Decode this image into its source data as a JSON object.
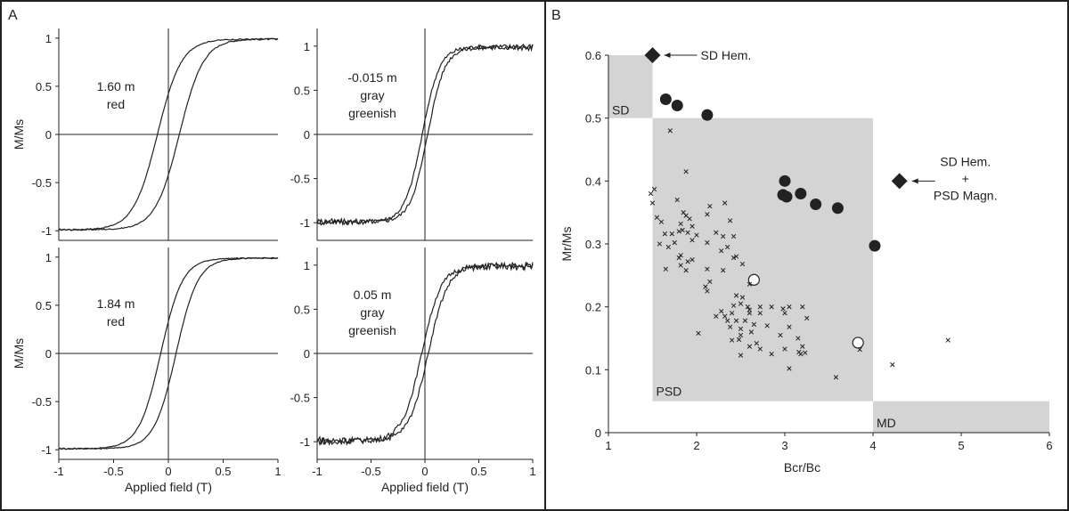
{
  "panels": {
    "a": "A",
    "b": "B"
  },
  "chart_data": [
    {
      "type": "line",
      "panel": "A",
      "subplot": "top-left",
      "annotation": [
        "1.60 m",
        "red"
      ],
      "ylabel": "M/Ms",
      "xlabel": "",
      "xlim": [
        -1,
        1
      ],
      "ylim": [
        -1.1,
        1.1
      ],
      "xticks": [
        "-1",
        "-0.5",
        "0",
        "0.5",
        "1"
      ],
      "yticks": [
        "-1",
        "-0.5",
        "0",
        "0.5",
        "1"
      ],
      "loop": {
        "coercivity": 0.1,
        "width": 0.22,
        "noise": 0.005
      }
    },
    {
      "type": "line",
      "panel": "A",
      "subplot": "top-right",
      "annotation": [
        "-0.015 m",
        "gray",
        "greenish"
      ],
      "ylabel": "",
      "xlabel": "",
      "xlim": [
        -1,
        1
      ],
      "ylim": [
        -1.2,
        1.2
      ],
      "xticks": [
        "-1",
        "-0.5",
        "0",
        "0.5",
        "1"
      ],
      "yticks": [
        "-1",
        "-0.5",
        "0",
        "0.5",
        "1"
      ],
      "loop": {
        "coercivity": 0.025,
        "width": 0.16,
        "noise": 0.025
      }
    },
    {
      "type": "line",
      "panel": "A",
      "subplot": "bottom-left",
      "annotation": [
        "1.84 m",
        "red"
      ],
      "ylabel": "M/Ms",
      "xlabel": "Applied field (T)",
      "xlim": [
        -1,
        1
      ],
      "ylim": [
        -1.1,
        1.1
      ],
      "xticks": [
        "-1",
        "-0.5",
        "0",
        "0.5",
        "1"
      ],
      "yticks": [
        "-1",
        "-0.5",
        "0",
        "0.5",
        "1"
      ],
      "loop": {
        "coercivity": 0.07,
        "width": 0.2,
        "noise": 0.004
      }
    },
    {
      "type": "line",
      "panel": "A",
      "subplot": "bottom-right",
      "annotation": [
        "0.05 m",
        "gray",
        "greenish"
      ],
      "ylabel": "",
      "xlabel": "Applied field (T)",
      "xlim": [
        -1,
        1
      ],
      "ylim": [
        -1.2,
        1.2
      ],
      "xticks": [
        "-1",
        "-0.5",
        "0",
        "0.5",
        "1"
      ],
      "yticks": [
        "-1",
        "-0.5",
        "0",
        "0.5",
        "1"
      ],
      "loop": {
        "coercivity": 0.03,
        "width": 0.18,
        "noise": 0.03
      }
    },
    {
      "type": "scatter",
      "panel": "B",
      "xlabel": "Bcr/Bc",
      "ylabel": "Mr/Ms",
      "xlim": [
        1,
        6
      ],
      "ylim": [
        0,
        0.6
      ],
      "xticks": [
        "1",
        "2",
        "3",
        "4",
        "5",
        "6"
      ],
      "yticks": [
        "0",
        "0.1",
        "0.2",
        "0.3",
        "0.4",
        "0.5",
        "0.6"
      ],
      "regions": [
        {
          "label": "SD",
          "x": [
            1,
            1.5
          ],
          "y": [
            0.5,
            0.6
          ]
        },
        {
          "label": "PSD",
          "x": [
            1.5,
            4
          ],
          "y": [
            0.05,
            0.5
          ]
        },
        {
          "label": "MD",
          "x": [
            4,
            6
          ],
          "y": [
            0,
            0.05
          ]
        }
      ],
      "reference_points": [
        {
          "label": "SD Hem.",
          "x": 1.5,
          "y": 0.6
        },
        {
          "label": [
            "SD Hem.",
            "+",
            "PSD Magn."
          ],
          "x": 4.3,
          "y": 0.4
        }
      ],
      "series": [
        {
          "marker": "filled-circle",
          "points": [
            [
              1.65,
              0.53
            ],
            [
              1.78,
              0.52
            ],
            [
              2.12,
              0.505
            ],
            [
              3.0,
              0.4
            ],
            [
              2.98,
              0.378
            ],
            [
              3.02,
              0.375
            ],
            [
              3.18,
              0.38
            ],
            [
              3.35,
              0.363
            ],
            [
              3.6,
              0.357
            ],
            [
              4.02,
              0.297
            ]
          ]
        },
        {
          "marker": "open-circle",
          "points": [
            [
              2.65,
              0.243
            ],
            [
              3.83,
              0.143
            ]
          ]
        },
        {
          "marker": "cross",
          "points": [
            [
              1.7,
              0.48
            ],
            [
              1.88,
              0.415
            ],
            [
              1.48,
              0.38
            ],
            [
              1.5,
              0.365
            ],
            [
              1.52,
              0.387
            ],
            [
              1.78,
              0.37
            ],
            [
              2.15,
              0.36
            ],
            [
              2.32,
              0.365
            ],
            [
              1.85,
              0.35
            ],
            [
              1.88,
              0.345
            ],
            [
              2.12,
              0.347
            ],
            [
              1.92,
              0.34
            ],
            [
              1.55,
              0.342
            ],
            [
              1.6,
              0.335
            ],
            [
              1.82,
              0.332
            ],
            [
              1.95,
              0.328
            ],
            [
              2.38,
              0.337
            ],
            [
              1.64,
              0.316
            ],
            [
              1.72,
              0.316
            ],
            [
              1.8,
              0.32
            ],
            [
              1.84,
              0.322
            ],
            [
              1.9,
              0.318
            ],
            [
              2.0,
              0.314
            ],
            [
              2.22,
              0.318
            ],
            [
              2.3,
              0.312
            ],
            [
              2.42,
              0.312
            ],
            [
              1.58,
              0.3
            ],
            [
              1.75,
              0.302
            ],
            [
              1.95,
              0.306
            ],
            [
              2.12,
              0.302
            ],
            [
              2.35,
              0.295
            ],
            [
              2.28,
              0.289
            ],
            [
              2.45,
              0.28
            ],
            [
              1.68,
              0.295
            ],
            [
              1.82,
              0.282
            ],
            [
              1.8,
              0.278
            ],
            [
              1.9,
              0.272
            ],
            [
              1.95,
              0.275
            ],
            [
              1.65,
              0.26
            ],
            [
              1.82,
              0.266
            ],
            [
              2.42,
              0.278
            ],
            [
              2.12,
              0.26
            ],
            [
              2.3,
              0.258
            ],
            [
              2.52,
              0.268
            ],
            [
              1.88,
              0.258
            ],
            [
              2.15,
              0.24
            ],
            [
              2.1,
              0.232
            ],
            [
              2.6,
              0.236
            ],
            [
              2.12,
              0.225
            ],
            [
              2.45,
              0.218
            ],
            [
              2.52,
              0.215
            ],
            [
              2.5,
              0.205
            ],
            [
              2.42,
              0.202
            ],
            [
              2.58,
              0.2
            ],
            [
              2.72,
              0.2
            ],
            [
              2.85,
              0.2
            ],
            [
              2.98,
              0.197
            ],
            [
              3.05,
              0.2
            ],
            [
              3.2,
              0.2
            ],
            [
              3.0,
              0.19
            ],
            [
              2.6,
              0.195
            ],
            [
              2.4,
              0.19
            ],
            [
              2.28,
              0.193
            ],
            [
              2.32,
              0.185
            ],
            [
              2.6,
              0.19
            ],
            [
              2.72,
              0.19
            ],
            [
              2.45,
              0.178
            ],
            [
              2.55,
              0.178
            ],
            [
              3.25,
              0.182
            ],
            [
              2.22,
              0.185
            ],
            [
              2.35,
              0.178
            ],
            [
              2.38,
              0.168
            ],
            [
              2.5,
              0.165
            ],
            [
              2.65,
              0.172
            ],
            [
              2.8,
              0.17
            ],
            [
              3.05,
              0.168
            ],
            [
              2.5,
              0.155
            ],
            [
              2.62,
              0.16
            ],
            [
              2.95,
              0.155
            ],
            [
              3.15,
              0.15
            ],
            [
              2.02,
              0.158
            ],
            [
              2.4,
              0.147
            ],
            [
              2.48,
              0.148
            ],
            [
              2.68,
              0.142
            ],
            [
              2.6,
              0.137
            ],
            [
              3.0,
              0.133
            ],
            [
              2.72,
              0.133
            ],
            [
              3.2,
              0.137
            ],
            [
              3.16,
              0.128
            ],
            [
              3.18,
              0.125
            ],
            [
              3.23,
              0.127
            ],
            [
              2.5,
              0.123
            ],
            [
              2.85,
              0.125
            ],
            [
              3.05,
              0.102
            ],
            [
              3.58,
              0.088
            ],
            [
              3.85,
              0.132
            ],
            [
              4.22,
              0.108
            ],
            [
              4.85,
              0.147
            ]
          ]
        }
      ]
    }
  ]
}
